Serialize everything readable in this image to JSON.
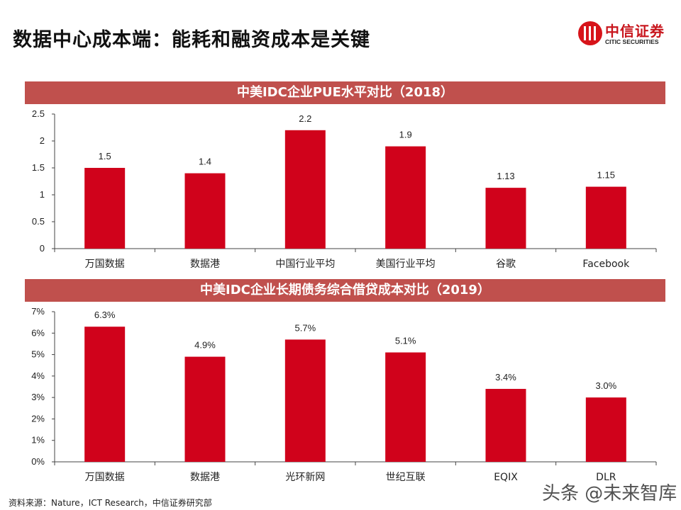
{
  "header": {
    "title": "数据中心成本端：能耗和融资成本是关键"
  },
  "logo": {
    "cn": "中信证券",
    "en": "CITIC SECURITIES"
  },
  "colors": {
    "band": "#c0504d",
    "bar": "#d0021b"
  },
  "chart_data": [
    {
      "type": "bar",
      "title": "中美IDC企业PUE水平对比（2018）",
      "categories": [
        "万国数据",
        "数据港",
        "中国行业平均",
        "美国行业平均",
        "谷歌",
        "Facebook"
      ],
      "values": [
        1.5,
        1.4,
        2.2,
        1.9,
        1.13,
        1.15
      ],
      "data_labels": [
        "1.5",
        "1.4",
        "2.2",
        "1.9",
        "1.13",
        "1.15"
      ],
      "yticks": [
        "0",
        "0.5",
        "1",
        "1.5",
        "2",
        "2.5"
      ],
      "ylim": [
        0,
        2.5
      ],
      "grid": false,
      "xlabel": "",
      "ylabel": ""
    },
    {
      "type": "bar",
      "title": "中美IDC企业长期债务综合借贷成本对比（2019）",
      "categories": [
        "万国数据",
        "数据港",
        "光环新网",
        "世纪互联",
        "EQIX",
        "DLR"
      ],
      "values": [
        6.3,
        4.9,
        5.7,
        5.1,
        3.4,
        3.0
      ],
      "data_labels": [
        "6.3%",
        "4.9%",
        "5.7%",
        "5.1%",
        "3.4%",
        "3.0%"
      ],
      "yticks": [
        "0%",
        "1%",
        "2%",
        "3%",
        "4%",
        "5%",
        "6%",
        "7%"
      ],
      "ylim": [
        0,
        7
      ],
      "grid": false,
      "xlabel": "",
      "ylabel": ""
    }
  ],
  "footer": {
    "source": "资料来源：Nature，ICT Research，中信证券研究部",
    "watermark": "头条 @未来智库"
  }
}
